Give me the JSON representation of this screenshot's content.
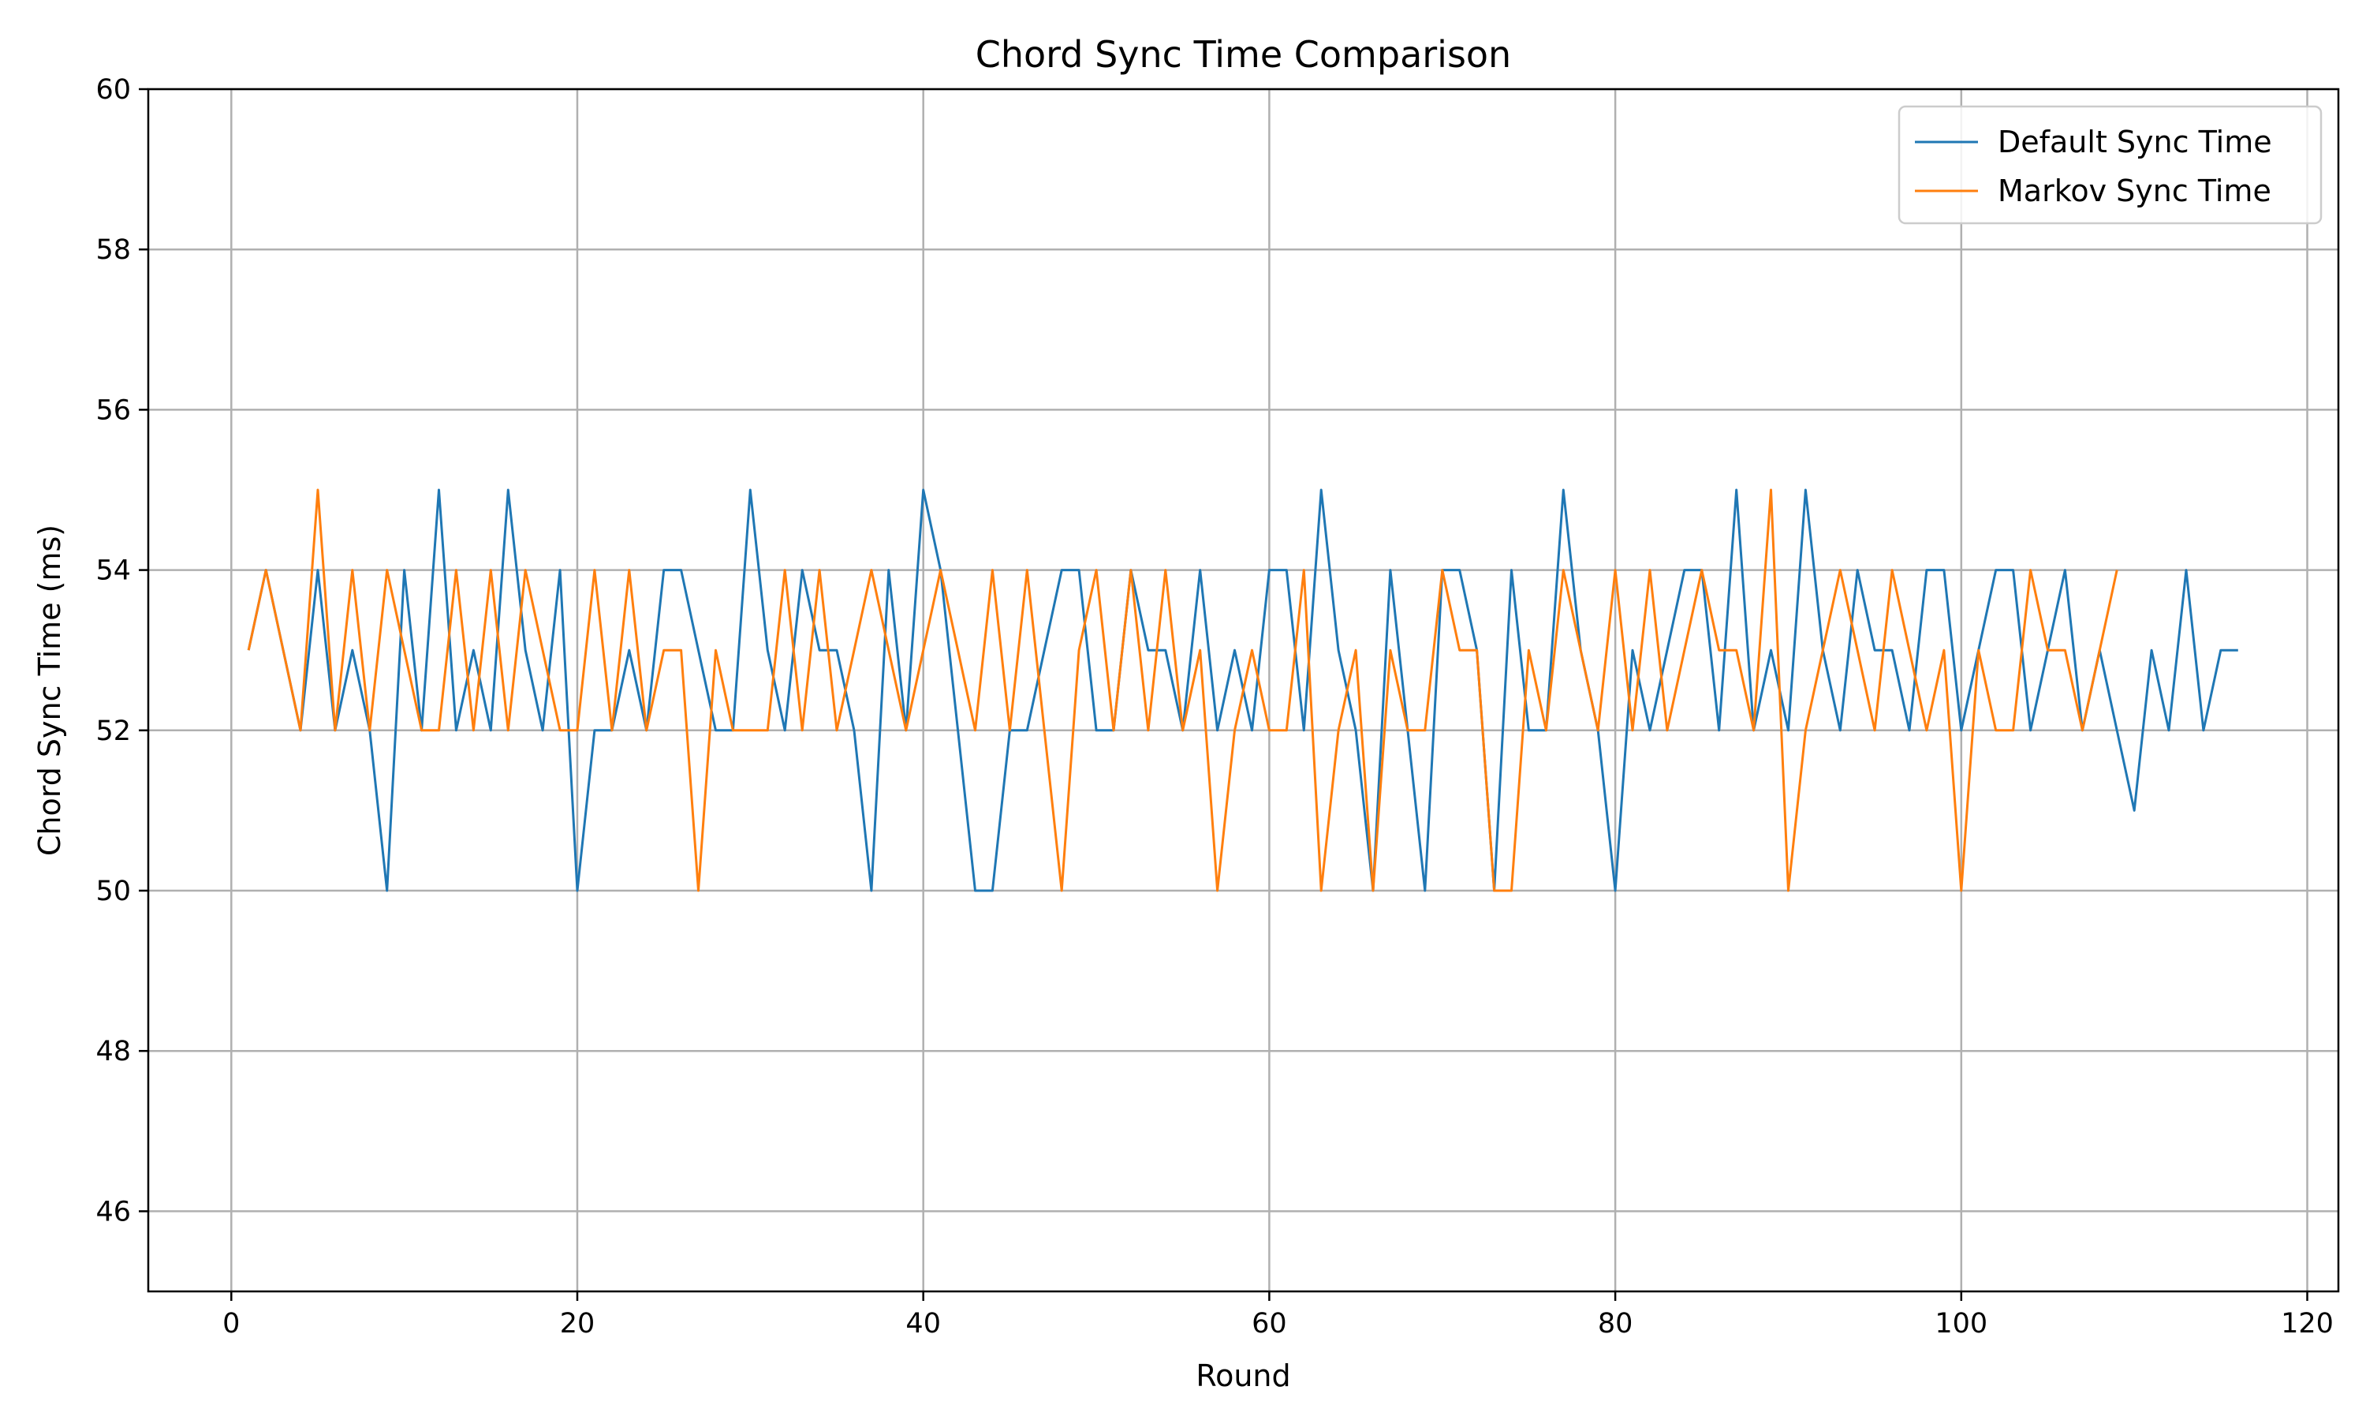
{
  "chart_data": {
    "type": "line",
    "title": "Chord Sync Time Comparison",
    "xlabel": "Round",
    "ylabel": "Chord Sync Time (ms)",
    "xlim": [
      -4.8,
      121.8
    ],
    "ylim": [
      45,
      60
    ],
    "xticks": [
      0,
      20,
      40,
      60,
      80,
      100,
      120
    ],
    "yticks": [
      46,
      48,
      50,
      52,
      54,
      56,
      58,
      60
    ],
    "grid": true,
    "legend_position": "top-right",
    "series": [
      {
        "name": "Default Sync Time",
        "color": "#1f77b4",
        "start_x": 1,
        "values": [
          53,
          54,
          53,
          52,
          54,
          52,
          53,
          52,
          50,
          54,
          52,
          55,
          52,
          53,
          52,
          55,
          53,
          52,
          54,
          50,
          52,
          52,
          53,
          52,
          54,
          54,
          53,
          52,
          52,
          55,
          53,
          52,
          54,
          53,
          53,
          52,
          50,
          54,
          52,
          55,
          54,
          52,
          50,
          50,
          52,
          52,
          53,
          54,
          54,
          52,
          52,
          54,
          53,
          53,
          52,
          54,
          52,
          53,
          52,
          54,
          54,
          52,
          55,
          53,
          52,
          50,
          54,
          52,
          50,
          54,
          54,
          53,
          50,
          54,
          52,
          52,
          55,
          53,
          52,
          50,
          53,
          52,
          53,
          54,
          54,
          52,
          55,
          52,
          53,
          52,
          55,
          53,
          52,
          54,
          53,
          53,
          52,
          54,
          54,
          52,
          53,
          54,
          54,
          52,
          53,
          54,
          52,
          53,
          52,
          51,
          53,
          52,
          54,
          52,
          53,
          53
        ]
      },
      {
        "name": "Markov Sync Time",
        "color": "#ff7f0e",
        "start_x": 1,
        "values": [
          53,
          54,
          53,
          52,
          55,
          52,
          54,
          52,
          54,
          53,
          52,
          52,
          54,
          52,
          54,
          52,
          54,
          53,
          52,
          52,
          54,
          52,
          54,
          52,
          53,
          53,
          50,
          53,
          52,
          52,
          52,
          54,
          52,
          54,
          52,
          53,
          54,
          53,
          52,
          53,
          54,
          53,
          52,
          54,
          52,
          54,
          52,
          50,
          53,
          54,
          52,
          54,
          52,
          54,
          52,
          53,
          50,
          52,
          53,
          52,
          52,
          54,
          50,
          52,
          53,
          50,
          53,
          52,
          52,
          54,
          53,
          53,
          50,
          50,
          53,
          52,
          54,
          53,
          52,
          54,
          52,
          54,
          52,
          53,
          54,
          53,
          53,
          52,
          55,
          50,
          52,
          53,
          54,
          53,
          52,
          54,
          53,
          52,
          53,
          50,
          53,
          52,
          52,
          54,
          53,
          53,
          52,
          53,
          54
        ]
      }
    ]
  }
}
